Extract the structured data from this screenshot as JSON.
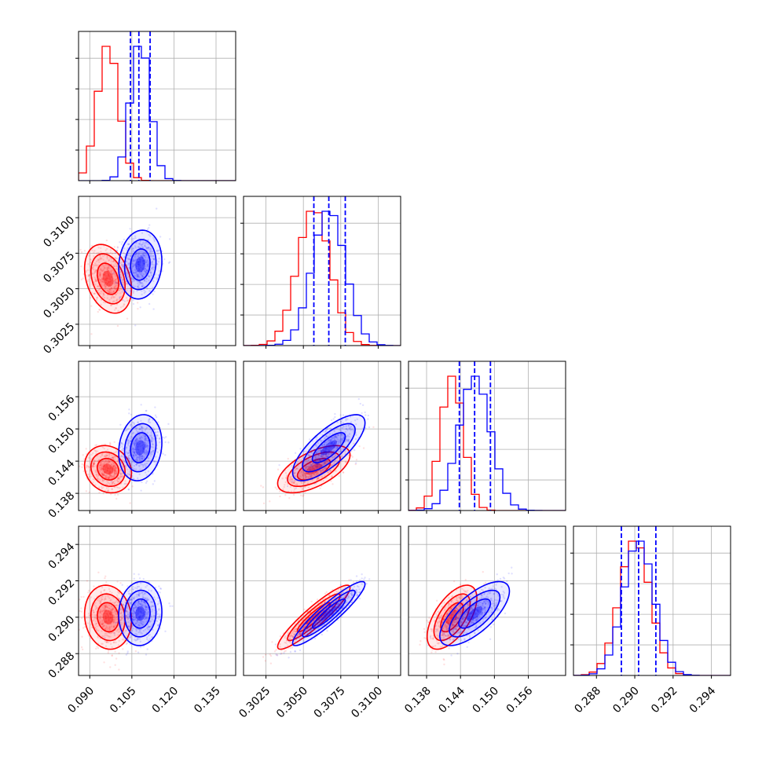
{
  "chart_data": {
    "type": "corner",
    "grid": true,
    "parameters": [
      {
        "name": "",
        "range": [
          0.086,
          0.142
        ],
        "ticks": [
          0.09,
          0.105,
          0.12,
          0.135
        ],
        "tick_labels": [
          "0.090",
          "0.105",
          "0.120",
          "0.135"
        ]
      },
      {
        "name": "",
        "range": [
          0.301,
          0.3115
        ],
        "ticks": [
          0.3025,
          0.305,
          0.3075,
          0.31
        ],
        "tick_labels": [
          "0.3025",
          "0.3050",
          "0.3075",
          "0.3100"
        ]
      },
      {
        "name": "",
        "range": [
          0.1348,
          0.1626
        ],
        "ticks": [
          0.138,
          0.144,
          0.15,
          0.156
        ],
        "tick_labels": [
          "0.138",
          "0.144",
          "0.150",
          "0.156"
        ]
      },
      {
        "name": "",
        "range": [
          0.2868,
          0.295
        ],
        "ticks": [
          0.288,
          0.29,
          0.292,
          0.294
        ],
        "tick_labels": [
          "0.288",
          "0.290",
          "0.292",
          "0.294"
        ]
      }
    ],
    "series": [
      {
        "color": "#ff0000",
        "mean": [
          0.0965,
          0.3057,
          0.1425,
          0.29
        ],
        "sd": [
          0.0038,
          0.0011,
          0.002,
          0.0008
        ],
        "corr": [
          [
            1,
            -0.3,
            -0.15,
            -0.1
          ],
          [
            -0.3,
            1,
            0.6,
            0.92
          ],
          [
            -0.15,
            0.6,
            1,
            0.6
          ],
          [
            -0.1,
            0.92,
            0.6,
            1
          ]
        ],
        "quantiles_shown": false
      },
      {
        "color": "#0000ff",
        "mean": [
          0.108,
          0.3067,
          0.1465,
          0.2902
        ],
        "sd": [
          0.0035,
          0.0011,
          0.0028,
          0.0008
        ],
        "corr": [
          [
            1,
            0.1,
            0.15,
            0.05
          ],
          [
            0.1,
            1,
            0.75,
            0.92
          ],
          [
            0.15,
            0.75,
            1,
            0.7
          ],
          [
            0.05,
            0.92,
            0.7,
            1
          ]
        ],
        "quantiles": [
          [
            0.1045,
            0.1075,
            0.1115
          ],
          [
            0.3057,
            0.3067,
            0.3078
          ],
          [
            0.1438,
            0.1465,
            0.1493
          ],
          [
            0.2893,
            0.2902,
            0.2911
          ]
        ]
      }
    ]
  }
}
